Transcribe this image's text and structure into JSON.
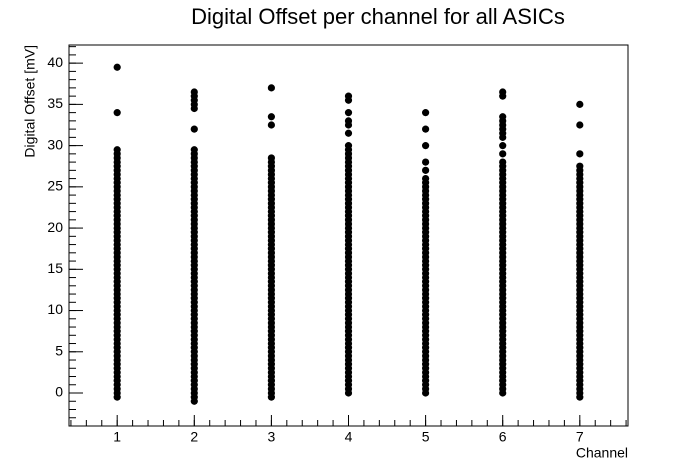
{
  "chart_data": {
    "type": "scatter",
    "title": "Digital Offset per channel for all ASICs",
    "x_label": "Channel",
    "y_label": "Digital Offset [mV]",
    "color": "#000000",
    "xlim": [
      0.375,
      7.625
    ],
    "ylim": [
      -4,
      42.2
    ],
    "xticks": [
      1,
      2,
      3,
      4,
      5,
      6,
      7
    ],
    "yticks": [
      0,
      5,
      10,
      15,
      20,
      25,
      30,
      35,
      40
    ],
    "columns": [
      {
        "x": 1,
        "y": [
          -0.5,
          0,
          0.5,
          1,
          1.5,
          2,
          2.5,
          3,
          3.5,
          4,
          4.5,
          5,
          5.5,
          6,
          6.5,
          7,
          7.5,
          8,
          8.5,
          9,
          9.5,
          10,
          10.5,
          11,
          11.5,
          12,
          12.5,
          13,
          13.5,
          14,
          14.5,
          15,
          15.5,
          16,
          16.5,
          17,
          17.5,
          18,
          18.5,
          19,
          19.5,
          20,
          20.5,
          21,
          21.5,
          22,
          22.5,
          23,
          23.5,
          24,
          24.5,
          25,
          25.5,
          26,
          26.5,
          27,
          27.5,
          28,
          28.5,
          29,
          29.5,
          34,
          39.5
        ]
      },
      {
        "x": 2,
        "y": [
          -1,
          -0.5,
          0,
          0.5,
          1,
          1.5,
          2,
          2.5,
          3,
          3.5,
          4,
          4.5,
          5,
          5.5,
          6,
          6.5,
          7,
          7.5,
          8,
          8.5,
          9,
          9.5,
          10,
          10.5,
          11,
          11.5,
          12,
          12.5,
          13,
          13.5,
          14,
          14.5,
          15,
          15.5,
          16,
          16.5,
          17,
          17.5,
          18,
          18.5,
          19,
          19.5,
          20,
          20.5,
          21,
          21.5,
          22,
          22.5,
          23,
          23.5,
          24,
          24.5,
          25,
          25.5,
          26,
          26.5,
          27,
          27.5,
          28,
          28.5,
          29,
          29.5,
          32,
          34.5,
          35,
          35.5,
          36,
          36.5
        ]
      },
      {
        "x": 3,
        "y": [
          -0.5,
          0,
          0.5,
          1,
          1.5,
          2,
          2.5,
          3,
          3.5,
          4,
          4.5,
          5,
          5.5,
          6,
          6.5,
          7,
          7.5,
          8,
          8.5,
          9,
          9.5,
          10,
          10.5,
          11,
          11.5,
          12,
          12.5,
          13,
          13.5,
          14,
          14.5,
          15,
          15.5,
          16,
          16.5,
          17,
          17.5,
          18,
          18.5,
          19,
          19.5,
          20,
          20.5,
          21,
          21.5,
          22,
          22.5,
          23,
          23.5,
          24,
          24.5,
          25,
          25.5,
          26,
          26.5,
          27,
          27.5,
          28,
          28.5,
          32.5,
          33.5,
          37
        ]
      },
      {
        "x": 4,
        "y": [
          0,
          0.5,
          1,
          1.5,
          2,
          2.5,
          3,
          3.5,
          4,
          4.5,
          5,
          5.5,
          6,
          6.5,
          7,
          7.5,
          8,
          8.5,
          9,
          9.5,
          10,
          10.5,
          11,
          11.5,
          12,
          12.5,
          13,
          13.5,
          14,
          14.5,
          15,
          15.5,
          16,
          16.5,
          17,
          17.5,
          18,
          18.5,
          19,
          19.5,
          20,
          20.5,
          21,
          21.5,
          22,
          22.5,
          23,
          23.5,
          24,
          24.5,
          25,
          25.5,
          26,
          26.5,
          27,
          27.5,
          28,
          28.5,
          29,
          29.5,
          30,
          31.5,
          32.5,
          33,
          34,
          35.5,
          36
        ]
      },
      {
        "x": 5,
        "y": [
          0,
          0.5,
          1,
          1.5,
          2,
          2.5,
          3,
          3.5,
          4,
          4.5,
          5,
          5.5,
          6,
          6.5,
          7,
          7.5,
          8,
          8.5,
          9,
          9.5,
          10,
          10.5,
          11,
          11.5,
          12,
          12.5,
          13,
          13.5,
          14,
          14.5,
          15,
          15.5,
          16,
          16.5,
          17,
          17.5,
          18,
          18.5,
          19,
          19.5,
          20,
          20.5,
          21,
          21.5,
          22,
          22.5,
          23,
          23.5,
          24,
          24.5,
          25,
          25.5,
          26,
          27,
          28,
          30,
          32,
          34
        ]
      },
      {
        "x": 6,
        "y": [
          0,
          0.5,
          1,
          1.5,
          2,
          2.5,
          3,
          3.5,
          4,
          4.5,
          5,
          5.5,
          6,
          6.5,
          7,
          7.5,
          8,
          8.5,
          9,
          9.5,
          10,
          10.5,
          11,
          11.5,
          12,
          12.5,
          13,
          13.5,
          14,
          14.5,
          15,
          15.5,
          16,
          16.5,
          17,
          17.5,
          18,
          18.5,
          19,
          19.5,
          20,
          20.5,
          21,
          21.5,
          22,
          22.5,
          23,
          23.5,
          24,
          24.5,
          25,
          25.5,
          26,
          26.5,
          27,
          27.5,
          28,
          29,
          30,
          31,
          31.5,
          32,
          32.5,
          33,
          33.5,
          36,
          36.5
        ]
      },
      {
        "x": 7,
        "y": [
          -0.5,
          0,
          0.5,
          1,
          1.5,
          2,
          2.5,
          3,
          3.5,
          4,
          4.5,
          5,
          5.5,
          6,
          6.5,
          7,
          7.5,
          8,
          8.5,
          9,
          9.5,
          10,
          10.5,
          11,
          11.5,
          12,
          12.5,
          13,
          13.5,
          14,
          14.5,
          15,
          15.5,
          16,
          16.5,
          17,
          17.5,
          18,
          18.5,
          19,
          19.5,
          20,
          20.5,
          21,
          21.5,
          22,
          22.5,
          23,
          23.5,
          24,
          24.5,
          25,
          25.5,
          26,
          26.5,
          27,
          27.5,
          29,
          32.5,
          35
        ]
      }
    ]
  }
}
